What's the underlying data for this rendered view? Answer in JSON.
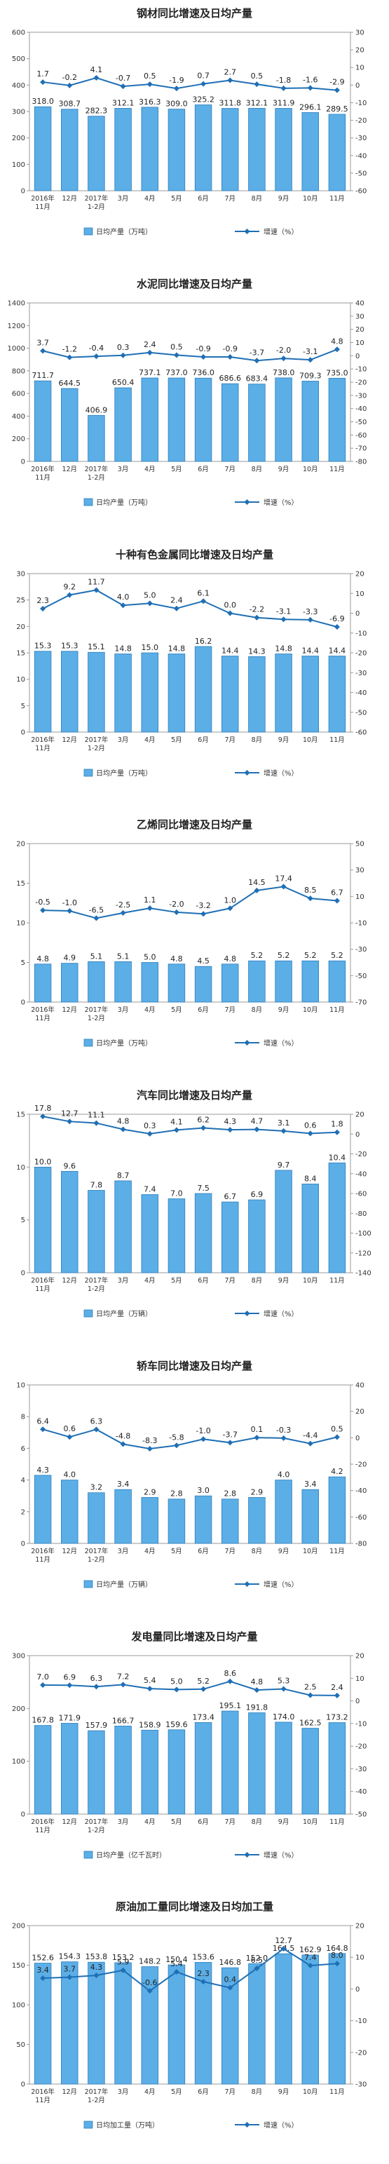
{
  "legend_bar_suffix": "",
  "legend_line_label": "增速（%）",
  "chart_data": [
    {
      "type": "bar+line",
      "title": "钢材同比增速及日均产量",
      "categories": [
        [
          "2016年",
          "11月"
        ],
        [
          "12月"
        ],
        [
          "2017年",
          "1-2月"
        ],
        [
          "3月"
        ],
        [
          "4月"
        ],
        [
          "5月"
        ],
        [
          "6月"
        ],
        [
          "7月"
        ],
        [
          "8月"
        ],
        [
          "9月"
        ],
        [
          "10月"
        ],
        [
          "11月"
        ]
      ],
      "bar_series": {
        "name": "日均产量（万吨）",
        "values": [
          318.0,
          308.7,
          282.3,
          312.1,
          316.3,
          309.0,
          325.2,
          311.8,
          312.1,
          311.9,
          296.1,
          289.5
        ],
        "labels": [
          "318.0",
          "308.7",
          "282.3",
          "312.1",
          "316.3",
          "309.0",
          "325.2",
          "311.8",
          "312.1",
          "311.9",
          "296.1",
          "289.5"
        ]
      },
      "line_series": {
        "name": "增速（%）",
        "values": [
          1.7,
          -0.2,
          4.1,
          -0.7,
          0.5,
          -1.9,
          0.7,
          2.7,
          0.5,
          -1.8,
          -1.6,
          -2.9
        ],
        "labels": [
          "1.7",
          "-0.2",
          "4.1",
          "-0.7",
          "0.5",
          "-1.9",
          "0.7",
          "2.7",
          "0.5",
          "-1.8",
          "-1.6",
          "-2.9"
        ]
      },
      "left_axis": {
        "min": 0,
        "max": 600,
        "ticks": [
          "0",
          "100",
          "200",
          "300",
          "400",
          "500",
          "600"
        ]
      },
      "right_axis": {
        "min": -60,
        "max": 30,
        "ticks": [
          "-60",
          "-50",
          "-40",
          "-30",
          "-20",
          "-10",
          "0",
          "10",
          "20",
          "30"
        ]
      }
    },
    {
      "type": "bar+line",
      "title": "水泥同比增速及日均产量",
      "categories": [
        [
          "2016年",
          "11月"
        ],
        [
          "12月"
        ],
        [
          "2017年",
          "1-2月"
        ],
        [
          "3月"
        ],
        [
          "4月"
        ],
        [
          "5月"
        ],
        [
          "6月"
        ],
        [
          "7月"
        ],
        [
          "8月"
        ],
        [
          "9月"
        ],
        [
          "10月"
        ],
        [
          "11月"
        ]
      ],
      "bar_series": {
        "name": "日均产量（万吨）",
        "values": [
          711.7,
          644.5,
          406.9,
          650.4,
          737.1,
          737.0,
          736.0,
          686.6,
          683.4,
          738.0,
          709.3,
          735.0
        ],
        "labels": [
          "711.7",
          "644.5",
          "406.9",
          "650.4",
          "737.1",
          "737.0",
          "736.0",
          "686.6",
          "683.4",
          "738.0",
          "709.3",
          "735.0"
        ]
      },
      "line_series": {
        "name": "增速（%）",
        "values": [
          3.7,
          -1.2,
          -0.4,
          0.3,
          2.4,
          0.5,
          -0.9,
          -0.9,
          -3.7,
          -2.0,
          -3.1,
          4.8
        ],
        "labels": [
          "3.7",
          "-1.2",
          "-0.4",
          "0.3",
          "2.4",
          "0.5",
          "-0.9",
          "-0.9",
          "-3.7",
          "-2.0",
          "-3.1",
          "4.8"
        ]
      },
      "left_axis": {
        "min": 0,
        "max": 1400,
        "ticks": [
          "0",
          "200",
          "400",
          "600",
          "800",
          "1000",
          "1200",
          "1400"
        ]
      },
      "right_axis": {
        "min": -80,
        "max": 40,
        "ticks": [
          "-80",
          "-70",
          "-60",
          "-50",
          "-40",
          "-30",
          "-20",
          "-10",
          "0",
          "10",
          "20",
          "30",
          "40"
        ]
      }
    },
    {
      "type": "bar+line",
      "title": "十种有色金属同比增速及日均产量",
      "categories": [
        [
          "2016年",
          "11月"
        ],
        [
          "12月"
        ],
        [
          "2017年",
          "1-2月"
        ],
        [
          "3月"
        ],
        [
          "4月"
        ],
        [
          "5月"
        ],
        [
          "6月"
        ],
        [
          "7月"
        ],
        [
          "8月"
        ],
        [
          "9月"
        ],
        [
          "10月"
        ],
        [
          "11月"
        ]
      ],
      "bar_series": {
        "name": "日均产量（万吨）",
        "values": [
          15.3,
          15.3,
          15.1,
          14.8,
          15.0,
          14.8,
          16.2,
          14.4,
          14.3,
          14.8,
          14.4,
          14.4
        ],
        "labels": [
          "15.3",
          "15.3",
          "15.1",
          "14.8",
          "15.0",
          "14.8",
          "16.2",
          "14.4",
          "14.3",
          "14.8",
          "14.4",
          "14.4"
        ]
      },
      "line_series": {
        "name": "增速（%）",
        "values": [
          2.3,
          9.2,
          11.7,
          4.0,
          5.0,
          2.4,
          6.1,
          0.0,
          -2.2,
          -3.1,
          -3.3,
          -6.9
        ],
        "labels": [
          "2.3",
          "9.2",
          "11.7",
          "4.0",
          "5.0",
          "2.4",
          "6.1",
          "0.0",
          "-2.2",
          "-3.1",
          "-3.3",
          "-6.9"
        ]
      },
      "left_axis": {
        "min": 0,
        "max": 30,
        "ticks": [
          "0",
          "5",
          "10",
          "15",
          "20",
          "25",
          "30"
        ]
      },
      "right_axis": {
        "min": -60,
        "max": 20,
        "ticks": [
          "-60",
          "-50",
          "-40",
          "-30",
          "-20",
          "-10",
          "0",
          "10",
          "20"
        ]
      }
    },
    {
      "type": "bar+line",
      "title": "乙烯同比增速及日均产量",
      "categories": [
        [
          "2016年",
          "11月"
        ],
        [
          "12月"
        ],
        [
          "2017年",
          "1-2月"
        ],
        [
          "3月"
        ],
        [
          "4月"
        ],
        [
          "5月"
        ],
        [
          "6月"
        ],
        [
          "7月"
        ],
        [
          "8月"
        ],
        [
          "9月"
        ],
        [
          "10月"
        ],
        [
          "11月"
        ]
      ],
      "bar_series": {
        "name": "日均产量（万吨）",
        "values": [
          4.8,
          4.9,
          5.1,
          5.1,
          5.0,
          4.8,
          4.5,
          4.8,
          5.2,
          5.2,
          5.2,
          5.2
        ],
        "labels": [
          "4.8",
          "4.9",
          "5.1",
          "5.1",
          "5.0",
          "4.8",
          "4.5",
          "4.8",
          "5.2",
          "5.2",
          "5.2",
          "5.2"
        ]
      },
      "line_series": {
        "name": "增速（%）",
        "values": [
          -0.5,
          -1.0,
          -6.5,
          -2.5,
          1.1,
          -2.0,
          -3.2,
          1.0,
          14.5,
          17.4,
          8.5,
          6.7
        ],
        "labels": [
          "-0.5",
          "-1.0",
          "-6.5",
          "-2.5",
          "1.1",
          "-2.0",
          "-3.2",
          "1.0",
          "14.5",
          "17.4",
          "8.5",
          "6.7"
        ]
      },
      "left_axis": {
        "min": 0,
        "max": 20,
        "ticks": [
          "0",
          "5",
          "10",
          "15",
          "20"
        ]
      },
      "right_axis": {
        "min": -70,
        "max": 50,
        "ticks": [
          "-70",
          "-50",
          "-30",
          "-10",
          "10",
          "30",
          "50"
        ]
      }
    },
    {
      "type": "bar+line",
      "title": "汽车同比增速及日均产量",
      "categories": [
        [
          "2016年",
          "11月"
        ],
        [
          "12月"
        ],
        [
          "2017年",
          "1-2月"
        ],
        [
          "3月"
        ],
        [
          "4月"
        ],
        [
          "5月"
        ],
        [
          "6月"
        ],
        [
          "7月"
        ],
        [
          "8月"
        ],
        [
          "9月"
        ],
        [
          "10月"
        ],
        [
          "11月"
        ]
      ],
      "bar_series": {
        "name": "日均产量（万辆）",
        "values": [
          10.0,
          9.6,
          7.8,
          8.7,
          7.4,
          7.0,
          7.5,
          6.7,
          6.9,
          9.7,
          8.4,
          10.4
        ],
        "labels": [
          "10.0",
          "9.6",
          "7.8",
          "8.7",
          "7.4",
          "7.0",
          "7.5",
          "6.7",
          "6.9",
          "9.7",
          "8.4",
          "10.4"
        ]
      },
      "line_series": {
        "name": "增速（%）",
        "values": [
          17.8,
          12.7,
          11.1,
          4.8,
          0.3,
          4.1,
          6.2,
          4.3,
          4.7,
          3.1,
          0.6,
          1.8
        ],
        "labels": [
          "17.8",
          "12.7",
          "11.1",
          "4.8",
          "0.3",
          "4.1",
          "6.2",
          "4.3",
          "4.7",
          "3.1",
          "0.6",
          "1.8"
        ]
      },
      "left_axis": {
        "min": 0,
        "max": 15,
        "ticks": [
          "0",
          "5",
          "10",
          "15"
        ]
      },
      "right_axis": {
        "min": -140,
        "max": 20,
        "ticks": [
          "-140",
          "-120",
          "-100",
          "-80",
          "-60",
          "-40",
          "-20",
          "0",
          "20"
        ]
      }
    },
    {
      "type": "bar+line",
      "title": "轿车同比增速及日均产量",
      "categories": [
        [
          "2016年",
          "11月"
        ],
        [
          "12月"
        ],
        [
          "2017年",
          "1-2月"
        ],
        [
          "3月"
        ],
        [
          "4月"
        ],
        [
          "5月"
        ],
        [
          "6月"
        ],
        [
          "7月"
        ],
        [
          "8月"
        ],
        [
          "9月"
        ],
        [
          "10月"
        ],
        [
          "11月"
        ]
      ],
      "bar_series": {
        "name": "日均产量（万辆）",
        "values": [
          4.3,
          4.0,
          3.2,
          3.4,
          2.9,
          2.8,
          3.0,
          2.8,
          2.9,
          4.0,
          3.4,
          4.2
        ],
        "labels": [
          "4.3",
          "4.0",
          "3.2",
          "3.4",
          "2.9",
          "2.8",
          "3.0",
          "2.8",
          "2.9",
          "4.0",
          "3.4",
          "4.2"
        ]
      },
      "line_series": {
        "name": "增速（%）",
        "values": [
          6.4,
          0.6,
          6.3,
          -4.8,
          -8.3,
          -5.8,
          -1.0,
          -3.7,
          0.1,
          -0.3,
          -4.4,
          0.5
        ],
        "labels": [
          "6.4",
          "0.6",
          "6.3",
          "-4.8",
          "-8.3",
          "-5.8",
          "-1.0",
          "-3.7",
          "0.1",
          "-0.3",
          "-4.4",
          "0.5"
        ]
      },
      "left_axis": {
        "min": 0,
        "max": 10,
        "ticks": [
          "0",
          "2",
          "4",
          "6",
          "8",
          "10"
        ]
      },
      "right_axis": {
        "min": -80,
        "max": 40,
        "ticks": [
          "-80",
          "-60",
          "-40",
          "-20",
          "0",
          "20",
          "40"
        ]
      }
    },
    {
      "type": "bar+line",
      "title": "发电量同比增速及日均产量",
      "categories": [
        [
          "2016年",
          "11月"
        ],
        [
          "12月"
        ],
        [
          "2017年",
          "1-2月"
        ],
        [
          "3月"
        ],
        [
          "4月"
        ],
        [
          "5月"
        ],
        [
          "6月"
        ],
        [
          "7月"
        ],
        [
          "8月"
        ],
        [
          "9月"
        ],
        [
          "10月"
        ],
        [
          "11月"
        ]
      ],
      "bar_series": {
        "name": "日均产量（亿千瓦时）",
        "values": [
          167.8,
          171.9,
          157.9,
          166.7,
          158.9,
          159.6,
          173.4,
          195.1,
          191.8,
          174.0,
          162.5,
          173.2
        ],
        "labels": [
          "167.8",
          "171.9",
          "157.9",
          "166.7",
          "158.9",
          "159.6",
          "173.4",
          "195.1",
          "191.8",
          "174.0",
          "162.5",
          "173.2"
        ]
      },
      "line_series": {
        "name": "增速（%）",
        "values": [
          7.0,
          6.9,
          6.3,
          7.2,
          5.4,
          5.0,
          5.2,
          8.6,
          4.8,
          5.3,
          2.5,
          2.4
        ],
        "labels": [
          "7.0",
          "6.9",
          "6.3",
          "7.2",
          "5.4",
          "5.0",
          "5.2",
          "8.6",
          "4.8",
          "5.3",
          "2.5",
          "2.4"
        ]
      },
      "left_axis": {
        "min": 0,
        "max": 300,
        "ticks": [
          "0",
          "100",
          "200",
          "300"
        ]
      },
      "right_axis": {
        "min": -50,
        "max": 20,
        "ticks": [
          "-50",
          "-40",
          "-30",
          "-20",
          "-10",
          "0",
          "10",
          "20"
        ]
      }
    },
    {
      "type": "bar+line",
      "title": "原油加工量同比增速及日均加工量",
      "categories": [
        [
          "2016年",
          "11月"
        ],
        [
          "12月"
        ],
        [
          "2017年",
          "1-2月"
        ],
        [
          "3月"
        ],
        [
          "4月"
        ],
        [
          "5月"
        ],
        [
          "6月"
        ],
        [
          "7月"
        ],
        [
          "8月"
        ],
        [
          "9月"
        ],
        [
          "10月"
        ],
        [
          "11月"
        ]
      ],
      "bar_series": {
        "name": "日均加工量（万吨）",
        "values": [
          152.6,
          154.3,
          153.8,
          153.2,
          148.2,
          150.4,
          153.6,
          146.8,
          152.0,
          164.5,
          162.9,
          164.8
        ],
        "labels": [
          "152.6",
          "154.3",
          "153.8",
          "153.2",
          "148.2",
          "150.4",
          "153.6",
          "146.8",
          "152.0",
          "164.5",
          "162.9",
          "164.8"
        ]
      },
      "line_series": {
        "name": "增速（%）",
        "values": [
          3.4,
          3.7,
          4.3,
          5.9,
          -0.6,
          5.4,
          2.3,
          0.4,
          6.5,
          12.7,
          7.4,
          8.0
        ],
        "labels": [
          "3.4",
          "3.7",
          "4.3",
          "5.9",
          "-0.6",
          "5.4",
          "2.3",
          "0.4",
          "6.5",
          "12.7",
          "7.4",
          "8.0"
        ]
      },
      "left_axis": {
        "min": 0,
        "max": 200,
        "ticks": [
          "0",
          "50",
          "100",
          "150",
          "200"
        ]
      },
      "right_axis": {
        "min": -30,
        "max": 20,
        "ticks": [
          "-30",
          "-20",
          "-10",
          "0",
          "10",
          "20"
        ]
      }
    }
  ]
}
